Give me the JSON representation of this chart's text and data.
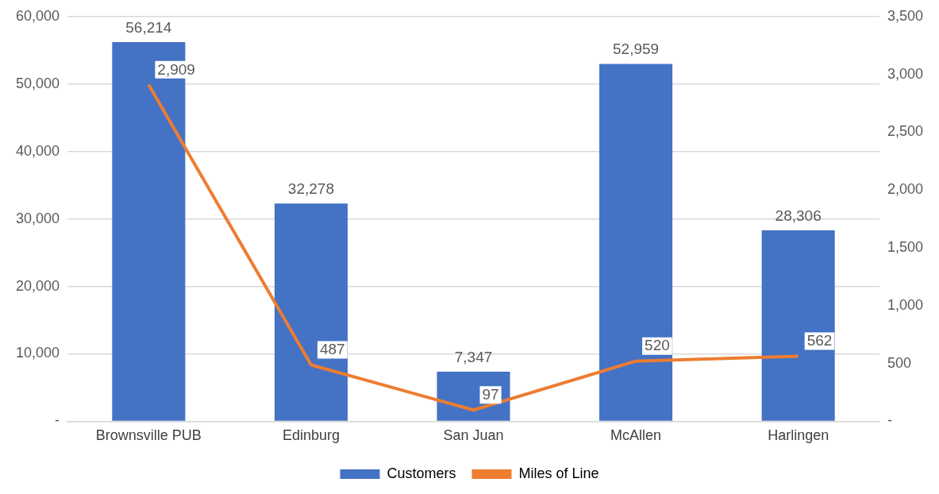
{
  "chart_data": {
    "type": "bar",
    "categories": [
      "Brownsville PUB",
      "Edinburg",
      "San Juan",
      "McAllen",
      "Harlingen"
    ],
    "series": [
      {
        "name": "Customers",
        "color": "#4472c4",
        "values": [
          56214,
          32278,
          7347,
          52959,
          28306
        ],
        "value_labels": [
          "56,214",
          "32,278",
          "7,347",
          "52,959",
          "28,306"
        ]
      },
      {
        "name": "Miles of Line",
        "type": "line",
        "axis": "y2",
        "color": "#ed7d31",
        "values": [
          2909,
          487,
          97,
          520,
          562
        ],
        "value_labels": [
          "2,909",
          "487",
          "97",
          "520",
          "562"
        ]
      }
    ],
    "ylim": [
      0,
      60000
    ],
    "yticks": [
      {
        "value": 0,
        "label": "-"
      },
      {
        "value": 10000,
        "label": "10,000"
      },
      {
        "value": 20000,
        "label": "20,000"
      },
      {
        "value": 30000,
        "label": "30,000"
      },
      {
        "value": 40000,
        "label": "40,000"
      },
      {
        "value": 50000,
        "label": "50,000"
      },
      {
        "value": 60000,
        "label": "60,000"
      }
    ],
    "y2lim": [
      0,
      3500
    ],
    "y2ticks": [
      {
        "value": 0,
        "label": "-"
      },
      500,
      {
        "value": 1000,
        "label": "1,000"
      },
      {
        "value": 1500,
        "label": "1,500"
      },
      {
        "value": 2000,
        "label": "2,000"
      },
      {
        "value": 2500,
        "label": "2,500"
      },
      {
        "value": 3000,
        "label": "3,000"
      },
      {
        "value": 3500,
        "label": "3,500"
      }
    ],
    "grid": "y",
    "legend": "bottom",
    "marker": "none",
    "line_style": "solid"
  }
}
